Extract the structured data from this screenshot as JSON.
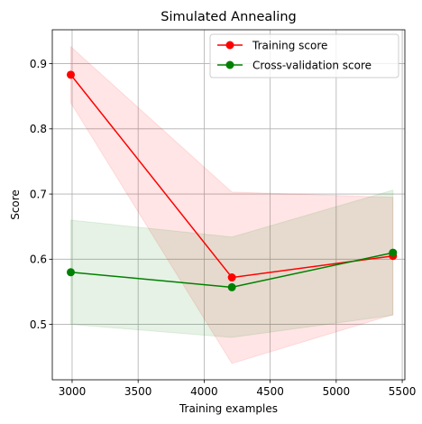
{
  "chart_data": {
    "type": "line",
    "title": "Simulated Annealing",
    "xlabel": "Training examples",
    "ylabel": "Score",
    "xlim": [
      2850,
      5520
    ],
    "ylim": [
      0.415,
      0.952
    ],
    "xticks": [
      3000,
      3500,
      4000,
      4500,
      5000,
      5500
    ],
    "yticks": [
      0.5,
      0.6,
      0.7,
      0.8,
      0.9
    ],
    "grid": true,
    "legend_position": "top-right",
    "x": [
      2990,
      4210,
      5430
    ],
    "series": [
      {
        "name": "Training score",
        "color": "#ff0000",
        "fill_color": "#ff0000",
        "fill_opacity": 0.1,
        "values": [
          0.883,
          0.572,
          0.605
        ],
        "band_lower": [
          0.84,
          0.44,
          0.515
        ],
        "band_upper": [
          0.926,
          0.703,
          0.695
        ]
      },
      {
        "name": "Cross-validation score",
        "color": "#008000",
        "fill_color": "#008000",
        "fill_opacity": 0.1,
        "values": [
          0.58,
          0.557,
          0.61
        ],
        "band_lower": [
          0.5,
          0.48,
          0.514
        ],
        "band_upper": [
          0.66,
          0.634,
          0.706
        ]
      }
    ]
  }
}
